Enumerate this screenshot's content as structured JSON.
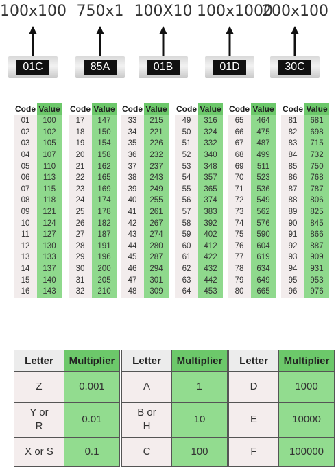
{
  "resistors": [
    {
      "caption": "100x100",
      "code": "01C"
    },
    {
      "caption": "750x1",
      "code": "85A"
    },
    {
      "caption": "100X10",
      "code": "01B"
    },
    {
      "caption": "100x1000",
      "code": "01D"
    },
    {
      "caption": "200x100",
      "code": "30C"
    }
  ],
  "code_value_tables": {
    "header_code": "Code",
    "header_value": "Value",
    "groups": [
      {
        "rows": [
          [
            "01",
            "100"
          ],
          [
            "02",
            "102"
          ],
          [
            "03",
            "105"
          ],
          [
            "04",
            "107"
          ],
          [
            "05",
            "110"
          ],
          [
            "06",
            "113"
          ],
          [
            "07",
            "115"
          ],
          [
            "08",
            "118"
          ],
          [
            "09",
            "121"
          ],
          [
            "10",
            "124"
          ],
          [
            "11",
            "127"
          ],
          [
            "12",
            "130"
          ],
          [
            "13",
            "133"
          ],
          [
            "14",
            "137"
          ],
          [
            "15",
            "140"
          ],
          [
            "16",
            "143"
          ]
        ]
      },
      {
        "rows": [
          [
            "17",
            "147"
          ],
          [
            "18",
            "150"
          ],
          [
            "19",
            "154"
          ],
          [
            "20",
            "158"
          ],
          [
            "21",
            "162"
          ],
          [
            "22",
            "165"
          ],
          [
            "23",
            "169"
          ],
          [
            "24",
            "174"
          ],
          [
            "25",
            "178"
          ],
          [
            "26",
            "182"
          ],
          [
            "27",
            "187"
          ],
          [
            "28",
            "191"
          ],
          [
            "29",
            "196"
          ],
          [
            "30",
            "200"
          ],
          [
            "31",
            "205"
          ],
          [
            "32",
            "210"
          ]
        ]
      },
      {
        "rows": [
          [
            "33",
            "215"
          ],
          [
            "34",
            "221"
          ],
          [
            "35",
            "226"
          ],
          [
            "36",
            "232"
          ],
          [
            "37",
            "237"
          ],
          [
            "38",
            "243"
          ],
          [
            "39",
            "249"
          ],
          [
            "40",
            "255"
          ],
          [
            "41",
            "261"
          ],
          [
            "42",
            "267"
          ],
          [
            "43",
            "274"
          ],
          [
            "44",
            "280"
          ],
          [
            "45",
            "287"
          ],
          [
            "46",
            "294"
          ],
          [
            "47",
            "301"
          ],
          [
            "48",
            "309"
          ]
        ]
      },
      {
        "rows": [
          [
            "49",
            "316"
          ],
          [
            "50",
            "324"
          ],
          [
            "51",
            "332"
          ],
          [
            "52",
            "340"
          ],
          [
            "53",
            "348"
          ],
          [
            "54",
            "357"
          ],
          [
            "55",
            "365"
          ],
          [
            "56",
            "374"
          ],
          [
            "57",
            "383"
          ],
          [
            "58",
            "392"
          ],
          [
            "59",
            "402"
          ],
          [
            "60",
            "412"
          ],
          [
            "61",
            "422"
          ],
          [
            "62",
            "432"
          ],
          [
            "63",
            "442"
          ],
          [
            "64",
            "453"
          ]
        ]
      },
      {
        "rows": [
          [
            "65",
            "464"
          ],
          [
            "66",
            "475"
          ],
          [
            "67",
            "487"
          ],
          [
            "68",
            "499"
          ],
          [
            "69",
            "511"
          ],
          [
            "70",
            "523"
          ],
          [
            "71",
            "536"
          ],
          [
            "72",
            "549"
          ],
          [
            "73",
            "562"
          ],
          [
            "74",
            "576"
          ],
          [
            "75",
            "590"
          ],
          [
            "76",
            "604"
          ],
          [
            "77",
            "619"
          ],
          [
            "78",
            "634"
          ],
          [
            "79",
            "649"
          ],
          [
            "80",
            "665"
          ]
        ]
      },
      {
        "rows": [
          [
            "81",
            "681"
          ],
          [
            "82",
            "698"
          ],
          [
            "83",
            "715"
          ],
          [
            "84",
            "732"
          ],
          [
            "85",
            "750"
          ],
          [
            "86",
            "768"
          ],
          [
            "87",
            "787"
          ],
          [
            "88",
            "806"
          ],
          [
            "89",
            "825"
          ],
          [
            "90",
            "845"
          ],
          [
            "91",
            "866"
          ],
          [
            "92",
            "887"
          ],
          [
            "93",
            "909"
          ],
          [
            "94",
            "931"
          ],
          [
            "95",
            "953"
          ],
          [
            "96",
            "976"
          ]
        ]
      }
    ]
  },
  "multiplier_tables": {
    "header_letter": "Letter",
    "header_multiplier": "Multiplier",
    "groups": [
      {
        "rows": [
          [
            "Z",
            "0.001"
          ],
          [
            "Y or R",
            "0.01"
          ],
          [
            "X or S",
            "0.1"
          ]
        ]
      },
      {
        "rows": [
          [
            "A",
            "1"
          ],
          [
            "B or H",
            "10"
          ],
          [
            "C",
            "100"
          ]
        ]
      },
      {
        "rows": [
          [
            "D",
            "1000"
          ],
          [
            "E",
            "10000"
          ],
          [
            "F",
            "100000"
          ]
        ]
      }
    ]
  },
  "colors": {
    "value_green": "#8fd98d",
    "header_green": "#6cc86a",
    "code_pink": "#f2ecec",
    "chip_black": "#111111"
  }
}
